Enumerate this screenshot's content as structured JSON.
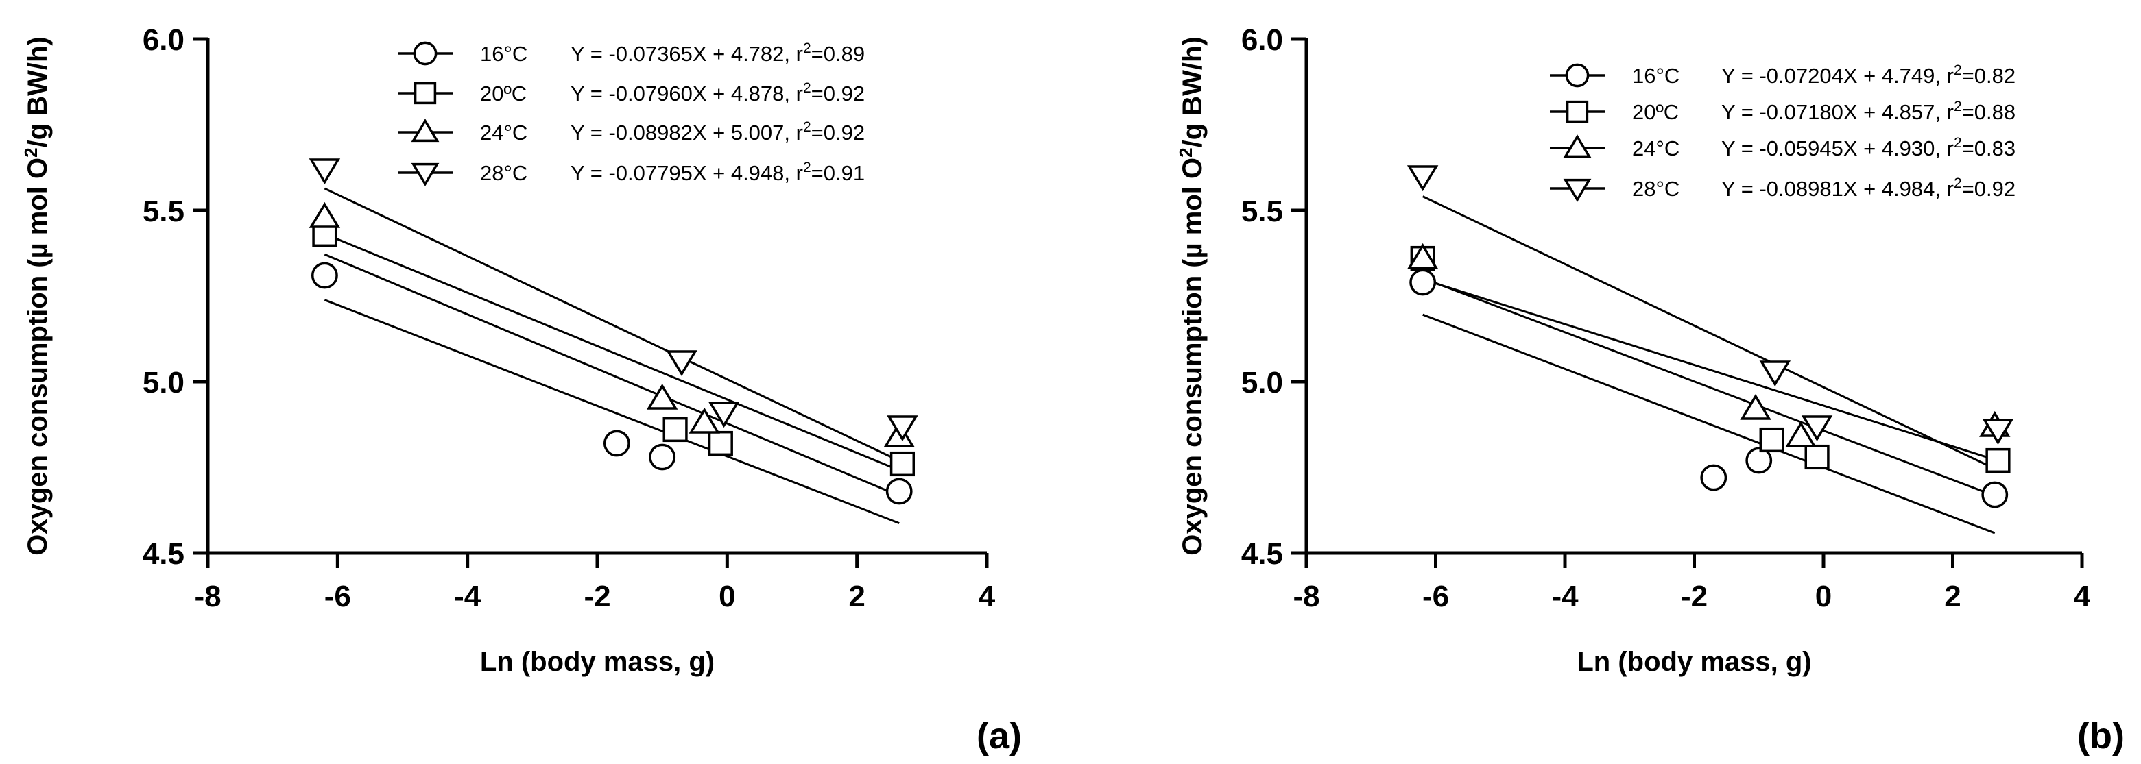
{
  "chart_data": [
    {
      "type": "scatter",
      "panel_label": "(a)",
      "xlabel": "Ln (body mass, g)",
      "ylabel": "Oxygen consumption (µ mol O²/g BW/h)",
      "ylabel_main": "Oxygen consumption (µ mol O",
      "ylabel_sup": "2",
      "ylabel_end": "/g BW/h)",
      "xlim": [
        -8,
        4
      ],
      "ylim": [
        4.5,
        6.0
      ],
      "xticks": [
        "-8",
        "-6",
        "-4",
        "-2",
        "0",
        "2",
        "4"
      ],
      "yticks": [
        "4.5",
        "5.0",
        "5.5",
        "6.0"
      ],
      "legend_position": "top-right",
      "series": [
        {
          "name": "16°C",
          "marker": "circle",
          "equation": "Y = -0.07365X + 4.782, r",
          "r2_sup": "2",
          "r2_value": "=0.89",
          "slope": -0.07365,
          "intercept": 4.782,
          "x": [
            -6.2,
            -1.7,
            -1.0,
            2.65
          ],
          "y": [
            5.31,
            4.82,
            4.78,
            4.68
          ]
        },
        {
          "name": "20ºC",
          "marker": "square",
          "equation": "Y = -0.07960X + 4.878, r",
          "r2_sup": "2",
          "r2_value": "=0.92",
          "slope": -0.0796,
          "intercept": 4.878,
          "x": [
            -6.2,
            -0.8,
            -0.1,
            2.7
          ],
          "y": [
            5.43,
            4.86,
            4.82,
            4.76
          ]
        },
        {
          "name": "24°C",
          "marker": "triangle-up",
          "equation": "Y = -0.08982X + 5.007, r",
          "r2_sup": "2",
          "r2_value": "=0.92",
          "slope": -0.08982,
          "intercept": 5.007,
          "x": [
            -6.2,
            -1.0,
            -0.35,
            2.65
          ],
          "y": [
            5.48,
            4.95,
            4.88,
            4.84
          ]
        },
        {
          "name": "28°C",
          "marker": "triangle-down",
          "equation": "Y = -0.07795X + 4.948, r",
          "r2_sup": "2",
          "r2_value": "=0.91",
          "slope": -0.07795,
          "intercept": 4.948,
          "x": [
            -6.2,
            -0.7,
            -0.05,
            2.7
          ],
          "y": [
            5.62,
            5.06,
            4.91,
            4.87
          ]
        }
      ]
    },
    {
      "type": "scatter",
      "panel_label": "(b)",
      "xlabel": "Ln (body mass, g)",
      "ylabel": "Oxygen consumption (µ mol O²/g BW/h)",
      "ylabel_main": "Oxygen consumption (µ mol O",
      "ylabel_sup": "2",
      "ylabel_end": "/g BW/h)",
      "xlim": [
        -8,
        4
      ],
      "ylim": [
        4.5,
        6.0
      ],
      "xticks": [
        "-8",
        "-6",
        "-4",
        "-2",
        "0",
        "2",
        "4"
      ],
      "yticks": [
        "4.5",
        "5.0",
        "5.5",
        "6.0"
      ],
      "legend_position": "top-right",
      "series": [
        {
          "name": "16°C",
          "marker": "circle",
          "equation": "Y = -0.07204X + 4.749, r",
          "r2_sup": "2",
          "r2_value": "=0.82",
          "slope": -0.07204,
          "intercept": 4.749,
          "x": [
            -6.2,
            -1.7,
            -1.0,
            2.65
          ],
          "y": [
            5.29,
            4.72,
            4.77,
            4.67
          ]
        },
        {
          "name": "20ºC",
          "marker": "square",
          "equation": "Y = -0.07180X + 4.857, r",
          "r2_sup": "2",
          "r2_value": "=0.88",
          "slope": -0.0718,
          "intercept": 4.857,
          "x": [
            -6.2,
            -0.8,
            -0.1,
            2.7
          ],
          "y": [
            5.36,
            4.83,
            4.78,
            4.77
          ]
        },
        {
          "name": "24°C",
          "marker": "triangle-up",
          "equation": "Y = -0.05945X + 4.930, r",
          "r2_sup": "2",
          "r2_value": "=0.83",
          "slope": -0.05945,
          "intercept": 4.93,
          "x": [
            -6.2,
            -1.05,
            -0.35,
            2.65
          ],
          "y": [
            5.36,
            4.92,
            4.84,
            4.87
          ]
        },
        {
          "name": "28°C",
          "marker": "triangle-down",
          "equation": "Y = -0.08981X + 4.984, r",
          "r2_sup": "2",
          "r2_value": "=0.92",
          "slope": -0.08981,
          "intercept": 4.984,
          "x": [
            -6.2,
            -0.75,
            -0.1,
            2.7
          ],
          "y": [
            5.6,
            5.03,
            4.87,
            4.86
          ]
        }
      ]
    }
  ]
}
